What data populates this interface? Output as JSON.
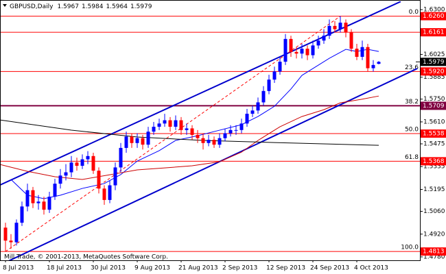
{
  "chart_data": {
    "type": "candlestick",
    "title": "GBPUSD,Daily",
    "footer": "Mill Trade, © 2001-2013, MetaQuotes Software Corp.",
    "categories": [
      "8 Jul 2013",
      null,
      null,
      null,
      null,
      null,
      null,
      null,
      "18 Jul 2013",
      null,
      null,
      null,
      null,
      null,
      null,
      null,
      "30 Jul 2013",
      null,
      null,
      null,
      null,
      null,
      null,
      null,
      "9 Aug 2013",
      null,
      null,
      null,
      null,
      null,
      null,
      null,
      "21 Aug 2013",
      null,
      null,
      null,
      null,
      null,
      null,
      null,
      "2 Sep 2013",
      null,
      null,
      null,
      null,
      null,
      null,
      null,
      "12 Sep 2013",
      null,
      null,
      null,
      null,
      null,
      null,
      null,
      "24 Sep 2013",
      null,
      null,
      null,
      null,
      null,
      null,
      null,
      "4 Oct 2013",
      null,
      null,
      null,
      null
    ],
    "open": [
      1.496,
      1.488,
      1.487,
      1.499,
      1.509,
      1.519,
      1.511,
      1.512,
      1.507,
      1.515,
      1.523,
      1.528,
      1.53,
      1.536,
      1.534,
      1.538,
      1.54,
      1.531,
      1.52,
      1.513,
      1.522,
      1.533,
      1.545,
      1.552,
      1.548,
      1.551,
      1.547,
      1.555,
      1.558,
      1.56,
      1.562,
      1.558,
      1.562,
      1.556,
      1.557,
      1.553,
      1.551,
      1.548,
      1.55,
      1.547,
      1.551,
      1.554,
      1.556,
      1.556,
      1.56,
      1.566,
      1.568,
      1.573,
      1.58,
      1.587,
      1.592,
      1.598,
      1.612,
      1.604,
      1.603,
      1.606,
      1.602,
      1.608,
      1.611,
      1.614,
      1.62,
      1.618,
      1.622,
      1.616,
      1.606,
      1.601,
      1.607,
      1.594,
      1.5967
    ],
    "high": [
      1.499,
      1.492,
      1.501,
      1.512,
      1.523,
      1.521,
      1.516,
      1.515,
      1.518,
      1.526,
      1.532,
      1.535,
      1.54,
      1.539,
      1.541,
      1.543,
      1.542,
      1.533,
      1.522,
      1.525,
      1.536,
      1.548,
      1.555,
      1.554,
      1.554,
      1.553,
      1.558,
      1.561,
      1.563,
      1.566,
      1.564,
      1.565,
      1.564,
      1.56,
      1.559,
      1.556,
      1.554,
      1.553,
      1.552,
      1.554,
      1.557,
      1.559,
      1.559,
      1.563,
      1.569,
      1.571,
      1.576,
      1.583,
      1.59,
      1.595,
      1.601,
      1.615,
      1.614,
      1.607,
      1.609,
      1.608,
      1.611,
      1.614,
      1.618,
      1.624,
      1.623,
      1.626,
      1.624,
      1.618,
      1.609,
      1.611,
      1.609,
      1.599,
      1.5984
    ],
    "low": [
      1.4813,
      1.483,
      1.485,
      1.497,
      1.506,
      1.508,
      1.507,
      1.504,
      1.505,
      1.513,
      1.52,
      1.525,
      1.527,
      1.531,
      1.532,
      1.535,
      1.529,
      1.517,
      1.51,
      1.511,
      1.519,
      1.53,
      1.542,
      1.545,
      1.545,
      1.544,
      1.545,
      1.553,
      1.556,
      1.558,
      1.555,
      1.556,
      1.553,
      1.553,
      1.55,
      1.548,
      1.544,
      1.546,
      1.545,
      1.545,
      1.549,
      1.552,
      1.553,
      1.554,
      1.558,
      1.564,
      1.566,
      1.571,
      1.578,
      1.585,
      1.59,
      1.596,
      1.601,
      1.6,
      1.6,
      1.599,
      1.6,
      1.606,
      1.609,
      1.612,
      1.616,
      1.616,
      1.613,
      1.604,
      1.599,
      1.599,
      1.592,
      1.592,
      1.5964
    ],
    "close": [
      1.488,
      1.487,
      1.499,
      1.509,
      1.519,
      1.511,
      1.512,
      1.507,
      1.515,
      1.523,
      1.528,
      1.53,
      1.536,
      1.534,
      1.538,
      1.54,
      1.531,
      1.52,
      1.513,
      1.522,
      1.533,
      1.545,
      1.552,
      1.548,
      1.551,
      1.547,
      1.555,
      1.558,
      1.56,
      1.562,
      1.558,
      1.562,
      1.556,
      1.557,
      1.553,
      1.551,
      1.548,
      1.55,
      1.547,
      1.551,
      1.554,
      1.556,
      1.556,
      1.56,
      1.566,
      1.568,
      1.573,
      1.58,
      1.587,
      1.592,
      1.598,
      1.612,
      1.604,
      1.603,
      1.606,
      1.602,
      1.608,
      1.611,
      1.614,
      1.62,
      1.618,
      1.622,
      1.616,
      1.606,
      1.601,
      1.607,
      1.594,
      1.596,
      1.5979
    ],
    "up_color": "#0000ff",
    "down_color": "#ff0000",
    "xlim": [
      -1,
      75.5
    ],
    "ylim": [
      1.4759,
      1.6351
    ],
    "yticks": [
      {
        "value": 1.63,
        "label": "1.6300"
      },
      {
        "value": 1.6025,
        "label": "1.6025"
      },
      {
        "value": 1.5885,
        "label": "1.5885"
      },
      {
        "value": 1.575,
        "label": "1.5750"
      },
      {
        "value": 1.561,
        "label": "1.5610"
      },
      {
        "value": 1.5475,
        "label": "1.5475"
      },
      {
        "value": 1.5335,
        "label": "1.5335"
      },
      {
        "value": 1.5195,
        "label": "1.5195"
      },
      {
        "value": 1.506,
        "label": "1.5060"
      },
      {
        "value": 1.492,
        "label": "1.4920"
      },
      {
        "value": 1.478,
        "label": "1.4780"
      }
    ],
    "levels": [
      {
        "value": 1.626,
        "label": "1.6260",
        "fib": "0.0",
        "color": "#ff0000"
      },
      {
        "value": 1.6161,
        "label": "1.6161",
        "color": "#ff0000"
      },
      {
        "value": 1.592,
        "label": "1.5920",
        "fib": "23.6",
        "color": "#ff0000"
      },
      {
        "value": 1.5709,
        "label": "1.5709",
        "fib": "38.2",
        "color": "#800040"
      },
      {
        "value": 1.5538,
        "label": "1.5538",
        "fib": "50.0",
        "color": "#ff0000"
      },
      {
        "value": 1.5368,
        "label": "1.5368",
        "fib": "61.8",
        "color": "#ff0000"
      },
      {
        "value": 1.4813,
        "label": "1.4813",
        "fib": "100.0",
        "color": "#ff0000"
      }
    ],
    "overlays": [
      {
        "color": "#0000cc",
        "width": 2,
        "x": [
          -1,
          72
        ],
        "values": [
          1.5222,
          1.635
        ]
      },
      {
        "color": "#0000cc",
        "width": 2,
        "x": [
          -1,
          75
        ],
        "values": [
          1.473,
          1.5938
        ]
      },
      {
        "color": "#ff0000",
        "width": 1,
        "dashed": true,
        "x": [
          0,
          61
        ],
        "values": [
          1.4813,
          1.626
        ]
      },
      {
        "color": "#0000ff",
        "width": 1,
        "x": [
          1,
          4,
          7,
          10,
          14,
          18,
          21,
          24,
          28,
          31,
          35,
          39,
          43,
          46,
          49,
          52,
          54,
          57,
          59,
          62,
          64,
          66,
          68
        ],
        "values": [
          1.5256,
          1.5159,
          1.5138,
          1.5159,
          1.5201,
          1.5231,
          1.5286,
          1.5369,
          1.5433,
          1.5496,
          1.5525,
          1.5559,
          1.5593,
          1.5643,
          1.5706,
          1.5812,
          1.5896,
          1.5959,
          1.6001,
          1.6056,
          1.6043,
          1.6056,
          1.6043
        ]
      },
      {
        "color": "#cc0000",
        "width": 1,
        "x": [
          -1,
          4,
          9,
          14,
          19,
          24,
          29,
          34,
          39,
          43,
          46,
          50,
          54,
          58,
          61,
          65,
          68
        ],
        "values": [
          1.5348,
          1.5306,
          1.5273,
          1.5256,
          1.5285,
          1.5315,
          1.5327,
          1.534,
          1.5365,
          1.5424,
          1.5496,
          1.558,
          1.5643,
          1.5685,
          1.5727,
          1.575,
          1.5769
        ]
      },
      {
        "color": "#000000",
        "width": 1,
        "x": [
          -1,
          12,
          24,
          36,
          49,
          68
        ],
        "values": [
          1.5622,
          1.5559,
          1.5517,
          1.5496,
          1.5483,
          1.5466
        ]
      }
    ]
  }
}
